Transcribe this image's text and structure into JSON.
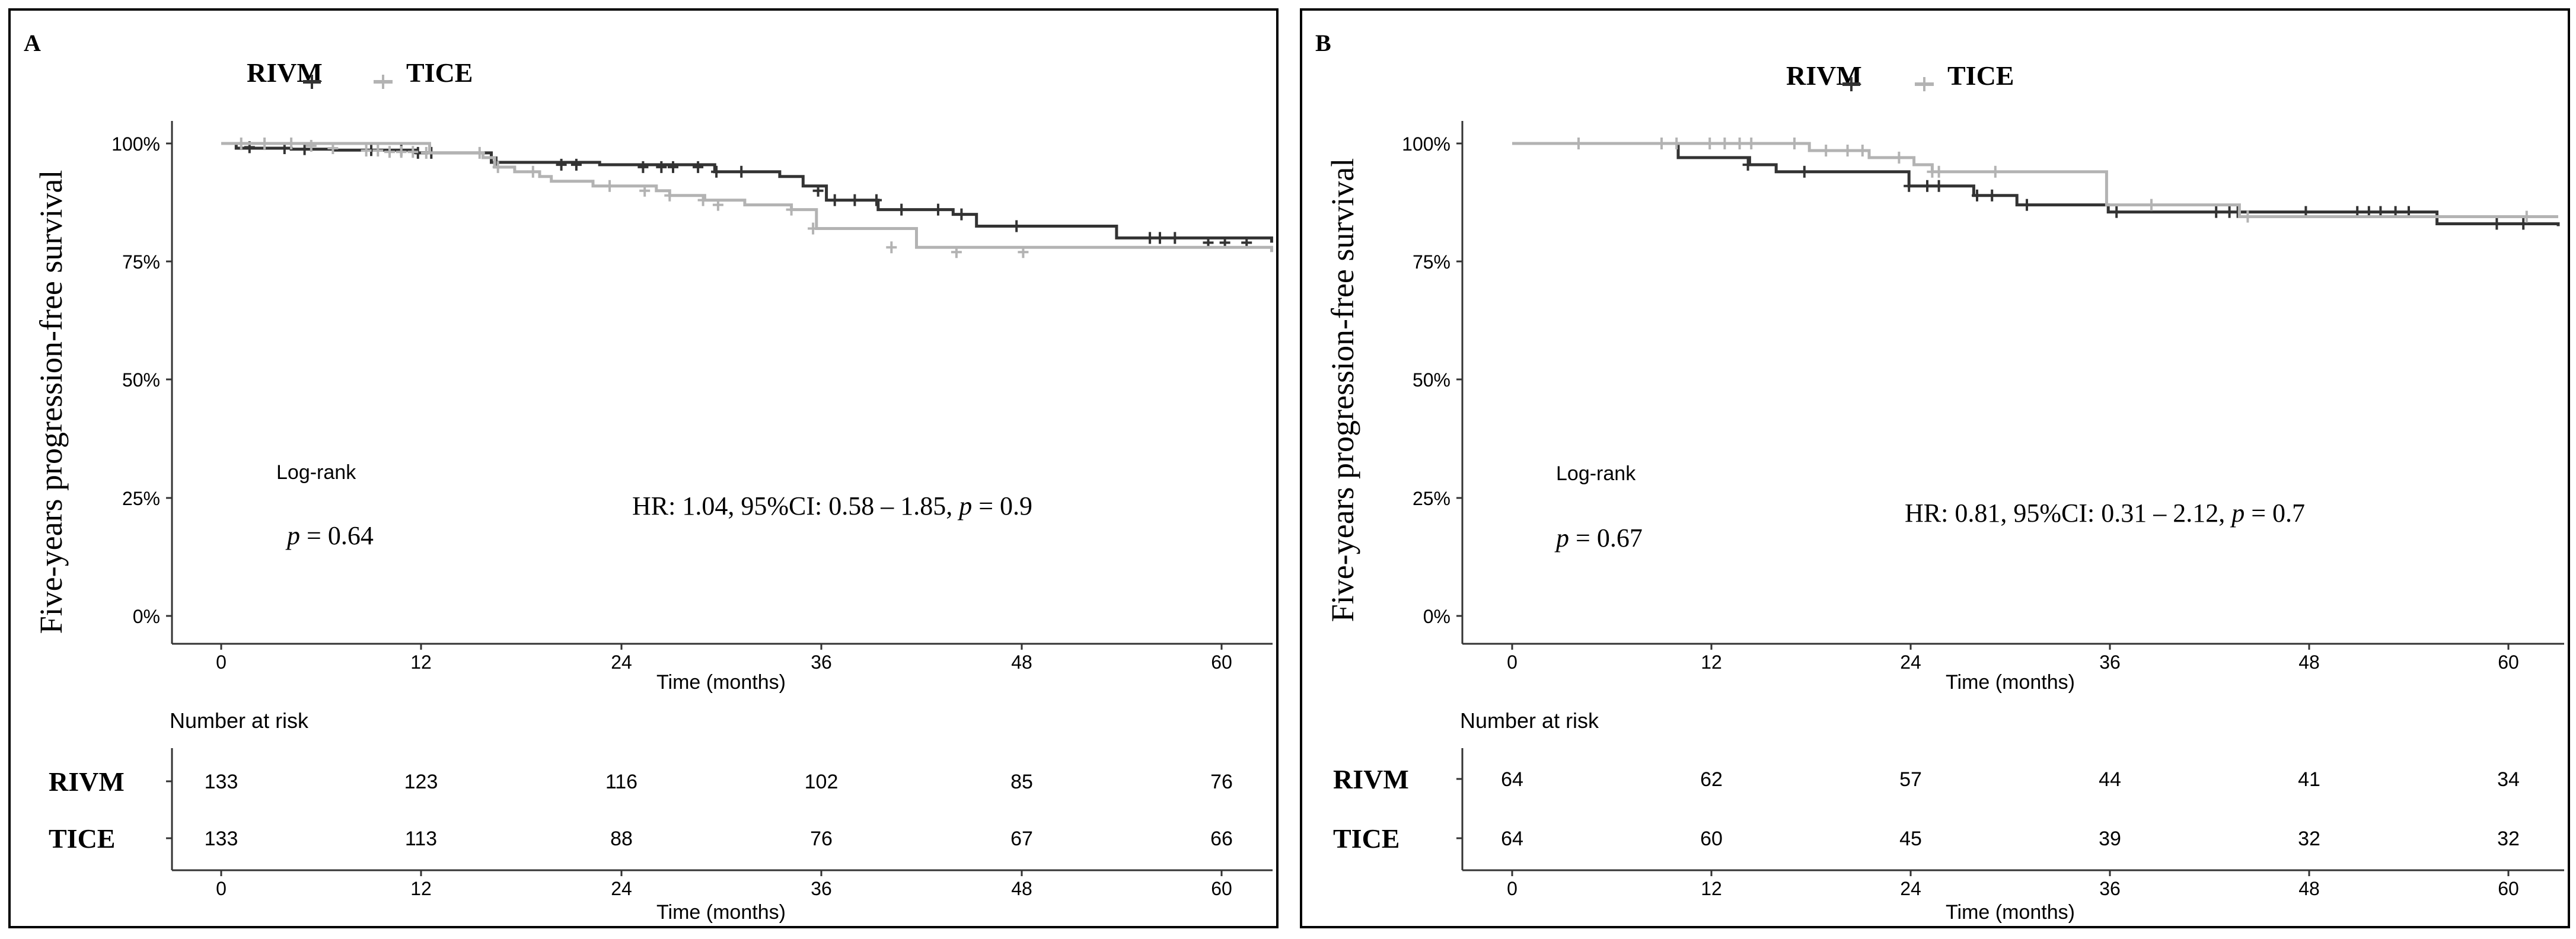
{
  "chart_data": [
    {
      "type": "line",
      "subtype": "kaplan-meier",
      "panel_label": "A",
      "ylabel": "Five-years progression-free survival",
      "xlabel": "Time (months)",
      "ylim": [
        0,
        100
      ],
      "xlim": [
        0,
        60
      ],
      "y_ticks": [
        0,
        25,
        50,
        75,
        100
      ],
      "y_tick_labels": [
        "0%",
        "25%",
        "50%",
        "75%",
        "100%"
      ],
      "x_ticks": [
        0,
        12,
        24,
        36,
        48,
        60
      ],
      "x_tick_labels": [
        "0",
        "12",
        "24",
        "36",
        "48",
        "60"
      ],
      "legend": {
        "placement": "top-center",
        "entries": [
          "RIVM",
          "TICE"
        ]
      },
      "annotation_logrank_label": "Log-rank",
      "annotation_logrank_p": "= 0.64",
      "annotation_hr": "HR: 1.04, 95%CI: 0.58 – 1.85,",
      "annotation_hr_p": "= 0.9",
      "p_symbol": "p",
      "series": [
        {
          "name": "RIVM",
          "color": "#333333",
          "x": [
            0,
            0.9,
            4.2,
            6.8,
            11.7,
            16.2,
            22.7,
            29.6,
            33.5,
            34.9,
            36.3,
            39.4,
            43.9,
            45.3,
            53.7,
            63
          ],
          "y": [
            100,
            99,
            98.8,
            98.6,
            98,
            96,
            95.5,
            94,
            93,
            91,
            88,
            86,
            85,
            82.5,
            80,
            79
          ],
          "censor_x": [
            1.7,
            3.8,
            5.0,
            9.0,
            10.8,
            11.8,
            12.6,
            16.5,
            20.4,
            21.3,
            25.3,
            26.4,
            27.1,
            28.6,
            29.7,
            31.2,
            35.8,
            36.8,
            38.0,
            39.3,
            40.8,
            43.0,
            44.4,
            47.7,
            55.7,
            56.3,
            57.2,
            59.2,
            60.2,
            61.5
          ],
          "censor_y": [
            99.2,
            99,
            98.8,
            98.6,
            98.6,
            98,
            98,
            96,
            95.5,
            95.5,
            95,
            95,
            95,
            95,
            94,
            94,
            90,
            88,
            88,
            88,
            86,
            86,
            85,
            82.5,
            80,
            80,
            80,
            79,
            79,
            79
          ]
        },
        {
          "name": "TICE",
          "color": "#b3b3b3",
          "x": [
            0,
            12.5,
            15.7,
            16.4,
            17.6,
            19.1,
            19.8,
            22.3,
            26.1,
            26.9,
            29,
            31.4,
            34.2,
            35.7,
            41.7,
            63
          ],
          "y": [
            100,
            98,
            97,
            95,
            94,
            93,
            92,
            91,
            90,
            89,
            88,
            87,
            86,
            82,
            78,
            77
          ],
          "censor_x": [
            1.2,
            2.6,
            4.2,
            5.4,
            6.7,
            8.7,
            9.4,
            10.1,
            10.8,
            11.5,
            12.3,
            15.5,
            16.6,
            18.7,
            23.3,
            25.4,
            26.9,
            28.9,
            29.8,
            34.2,
            35.5,
            40.2,
            44.1,
            48.1
          ],
          "censor_y": [
            100,
            100,
            100,
            99.5,
            99,
            98.5,
            98.5,
            98.2,
            98.2,
            98.2,
            98,
            98,
            95,
            94,
            91,
            90,
            89,
            88,
            87,
            86,
            82,
            78,
            77,
            77
          ]
        }
      ],
      "risk_table": {
        "title": "Number at risk",
        "times": [
          "0",
          "12",
          "24",
          "36",
          "48",
          "60"
        ],
        "rows": [
          {
            "label": "RIVM",
            "values": [
              "133",
              "123",
              "116",
              "102",
              "85",
              "76"
            ]
          },
          {
            "label": "TICE",
            "values": [
              "133",
              "113",
              "88",
              "76",
              "67",
              "66"
            ]
          }
        ]
      }
    },
    {
      "type": "line",
      "subtype": "kaplan-meier",
      "panel_label": "B",
      "ylabel": "Five-years progression-free survival",
      "xlabel": "Time (months)",
      "ylim": [
        0,
        100
      ],
      "xlim": [
        0,
        60
      ],
      "y_ticks": [
        0,
        25,
        50,
        75,
        100
      ],
      "y_tick_labels": [
        "0%",
        "25%",
        "50%",
        "75%",
        "100%"
      ],
      "x_ticks": [
        0,
        12,
        24,
        36,
        48,
        60
      ],
      "x_tick_labels": [
        "0",
        "12",
        "24",
        "36",
        "48",
        "60"
      ],
      "legend": {
        "placement": "top-center",
        "entries": [
          "RIVM",
          "TICE"
        ]
      },
      "annotation_logrank_label": "Log-rank",
      "annotation_logrank_p": "= 0.67",
      "annotation_hr": "HR: 0.81, 95%CI: 0.31 – 2.12,",
      "annotation_hr_p": "= 0.7",
      "p_symbol": "p",
      "series": [
        {
          "name": "RIVM",
          "color": "#333333",
          "x": [
            0,
            10,
            14.3,
            15.9,
            23.9,
            27.8,
            30.4,
            35.9,
            55.7,
            63
          ],
          "y": [
            100,
            97,
            95.5,
            94,
            91,
            89,
            87,
            85.5,
            83,
            82.5
          ],
          "censor_x": [
            14.2,
            17.6,
            23.9,
            25.0,
            25.7,
            28.0,
            28.9,
            31.0,
            36.4,
            42.4,
            43.2,
            43.7,
            47.8,
            50.9,
            51.6,
            52.3,
            53.2,
            54.0,
            59.3,
            60.9
          ],
          "censor_y": [
            95.5,
            94,
            91,
            91,
            91,
            89,
            89,
            87,
            85.5,
            85.5,
            85.5,
            85.5,
            85.5,
            85.5,
            85.5,
            85.5,
            85.5,
            85.5,
            83,
            83
          ]
        },
        {
          "name": "TICE",
          "color": "#b3b3b3",
          "x": [
            0,
            17.2,
            17.9,
            21.5,
            24.2,
            25.3,
            34.6,
            35.8,
            43.8,
            63
          ],
          "y": [
            100,
            100,
            98.5,
            97,
            95.5,
            94,
            94,
            87,
            84.5,
            84.5
          ],
          "censor_x": [
            4.0,
            9.0,
            9.9,
            11.9,
            12.8,
            13.7,
            14.4,
            17.0,
            18.9,
            20.2,
            21.1,
            23.3,
            25.3,
            25.7,
            29.1,
            38.5,
            44.3,
            61.1
          ],
          "censor_y": [
            100,
            100,
            100,
            100,
            100,
            100,
            100,
            100,
            98.5,
            98.5,
            98.5,
            97,
            94,
            94,
            94,
            87,
            84.5,
            84.5
          ]
        }
      ],
      "risk_table": {
        "title": "Number at risk",
        "times": [
          "0",
          "12",
          "24",
          "36",
          "48",
          "60"
        ],
        "rows": [
          {
            "label": "RIVM",
            "values": [
              "64",
              "62",
              "57",
              "44",
              "41",
              "34"
            ]
          },
          {
            "label": "TICE",
            "values": [
              "64",
              "60",
              "45",
              "39",
              "32",
              "32"
            ]
          }
        ]
      }
    }
  ]
}
